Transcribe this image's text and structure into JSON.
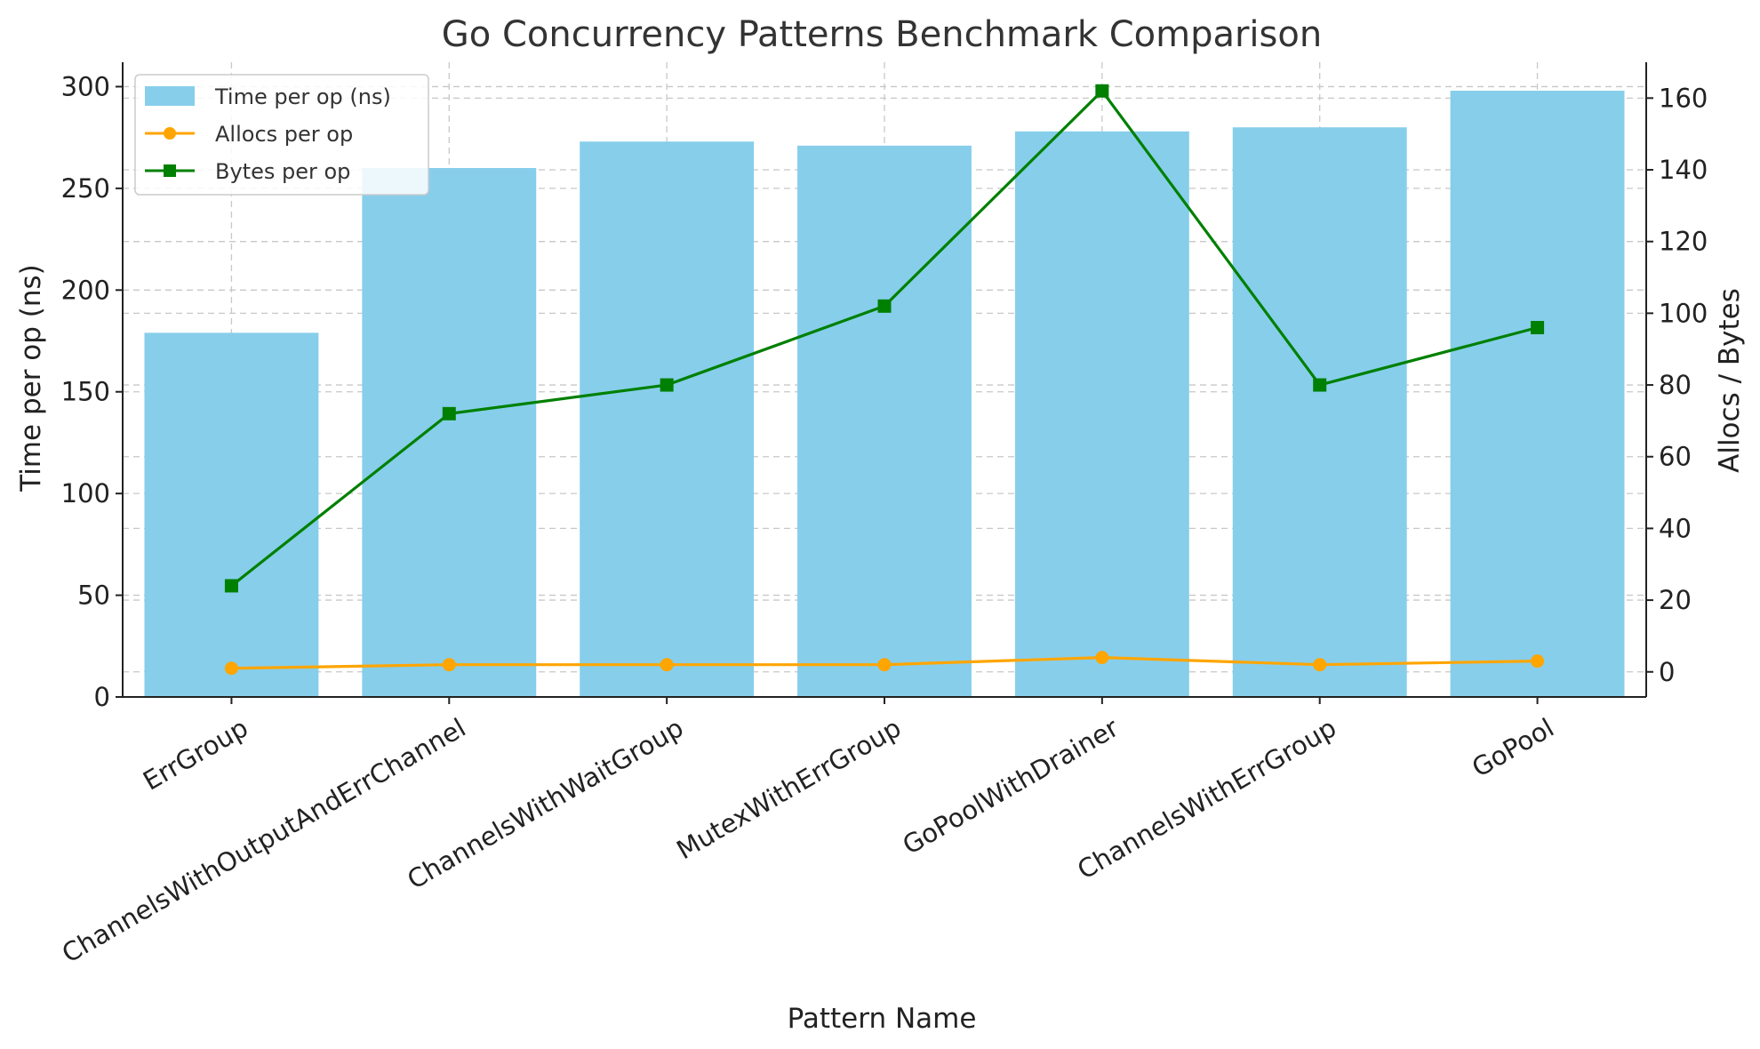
{
  "chart_data": {
    "type": "bar",
    "title": "Go Concurrency Patterns Benchmark Comparison",
    "xlabel": "Pattern Name",
    "ylabel": "Time per op (ns)",
    "y2label": "Allocs / Bytes",
    "categories": [
      "ErrGroup",
      "ChannelsWithOutputAndErrChannel",
      "ChannelsWithWaitGroup",
      "MutexWithErrGroup",
      "GoPoolWithDrainer",
      "ChannelsWithErrGroup",
      "GoPool"
    ],
    "ylim": [
      0,
      312
    ],
    "y2lim": [
      -7,
      170
    ],
    "yticks": [
      0,
      50,
      100,
      150,
      200,
      250,
      300
    ],
    "y2ticks": [
      0,
      20,
      40,
      60,
      80,
      100,
      120,
      140,
      160
    ],
    "grid": true,
    "legend_position": "top-left",
    "series": [
      {
        "name": "Time per op (ns)",
        "type": "bar",
        "axis": "left",
        "color": "#87ceeb",
        "values": [
          179,
          260,
          273,
          271,
          278,
          280,
          298
        ]
      },
      {
        "name": "Allocs per op",
        "type": "line",
        "axis": "right",
        "marker": "circle",
        "color": "#ffa500",
        "values": [
          1,
          2,
          2,
          2,
          4,
          2,
          3
        ]
      },
      {
        "name": "Bytes per op",
        "type": "line",
        "axis": "right",
        "marker": "square",
        "color": "#008000",
        "values": [
          24,
          72,
          80,
          102,
          162,
          80,
          96
        ]
      }
    ]
  }
}
